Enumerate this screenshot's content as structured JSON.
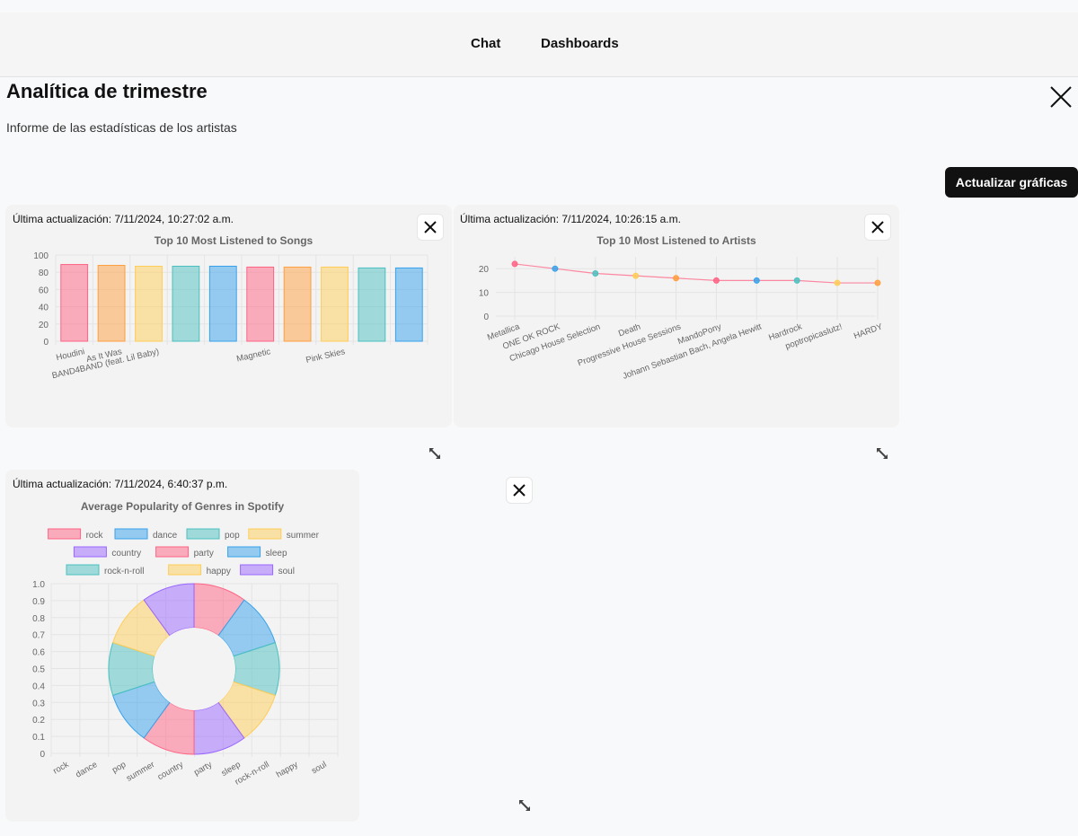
{
  "nav": {
    "chat_label": "Chat",
    "dashboards_label": "Dashboards"
  },
  "header": {
    "title": "Analítica de trimestre",
    "subtitle": "Informe de las estadísticas de los artistas"
  },
  "actions": {
    "refresh_label": "Actualizar gráficas"
  },
  "colors": {
    "pink": "#ff6384",
    "blue": "#36a2eb",
    "orange": "#ff9f40",
    "yellow": "#ffcd56",
    "teal": "#4bc0c0",
    "purple": "#9966ff"
  },
  "cards": [
    {
      "updated": "Última actualización: 7/11/2024, 10:27:02 a.m."
    },
    {
      "updated": "Última actualización: 7/11/2024, 10:26:15 a.m."
    },
    {
      "updated": "Última actualización: 7/11/2024, 6:40:37 p.m."
    }
  ],
  "chart_data": [
    {
      "type": "bar",
      "title": "Top 10 Most Listened to Songs",
      "categories": [
        "Houdini",
        "As It Was",
        "BAND4BAND (feat. Lil Baby)",
        "",
        "",
        "Magnetic",
        "",
        "Pink Skies",
        "",
        ""
      ],
      "values": [
        89,
        88,
        87,
        87,
        87,
        86,
        86,
        86,
        85,
        85
      ],
      "colors": [
        "pink",
        "orange",
        "yellow",
        "teal",
        "blue",
        "pink",
        "orange",
        "yellow",
        "teal",
        "blue"
      ],
      "ylim": [
        0,
        100
      ],
      "yticks": [
        0,
        20,
        40,
        60,
        80,
        100
      ],
      "grid": true
    },
    {
      "type": "line",
      "title": "Top 10 Most Listened to Artists",
      "categories": [
        "Metallica",
        "ONE OK ROCK",
        "Chicago House Selection",
        "Death",
        "Progressive House Sessions",
        "MandoPony",
        "Johann Sebastian Bach, Angela Hewitt",
        "Hardrock",
        "poptropicaslutz!",
        "HARDY"
      ],
      "values": [
        22,
        20,
        18,
        17,
        16,
        15,
        15,
        15,
        14,
        14
      ],
      "colors": [
        "pink",
        "blue",
        "teal",
        "yellow",
        "orange",
        "pink",
        "blue",
        "teal",
        "yellow",
        "orange"
      ],
      "ylim": [
        0,
        25
      ],
      "yticks": [
        0,
        10,
        20
      ],
      "grid": true
    },
    {
      "type": "pie",
      "title": "Average Popularity of Genres in Spotify",
      "categories": [
        "rock",
        "dance",
        "pop",
        "summer",
        "country",
        "party",
        "sleep",
        "rock-n-roll",
        "happy",
        "soul"
      ],
      "values": [
        1,
        1,
        1,
        1,
        1,
        1,
        1,
        1,
        1,
        1
      ],
      "segments": [
        {
          "genre": "rock",
          "value": 1,
          "color": "pink"
        },
        {
          "genre": "dance",
          "value": 1,
          "color": "blue"
        },
        {
          "genre": "rock-n-roll",
          "value": 1,
          "color": "teal"
        },
        {
          "genre": "happy",
          "value": 1,
          "color": "yellow"
        },
        {
          "genre": "soul",
          "value": 1,
          "color": "purple"
        },
        {
          "genre": "party",
          "value": 1,
          "color": "pink"
        },
        {
          "genre": "sleep",
          "value": 1,
          "color": "blue"
        },
        {
          "genre": "pop",
          "value": 1,
          "color": "teal"
        },
        {
          "genre": "summer",
          "value": 1,
          "color": "yellow"
        },
        {
          "genre": "country",
          "value": 1,
          "color": "purple"
        }
      ],
      "legend": [
        {
          "label": "rock",
          "color": "pink"
        },
        {
          "label": "dance",
          "color": "blue"
        },
        {
          "label": "pop",
          "color": "teal"
        },
        {
          "label": "summer",
          "color": "yellow"
        },
        {
          "label": "country",
          "color": "purple"
        },
        {
          "label": "party",
          "color": "pink"
        },
        {
          "label": "sleep",
          "color": "blue"
        },
        {
          "label": "rock-n-roll",
          "color": "teal"
        },
        {
          "label": "happy",
          "color": "yellow"
        },
        {
          "label": "soul",
          "color": "purple"
        }
      ],
      "legend_placement": "top",
      "ylim": [
        0,
        1.0
      ],
      "yticks": [
        "0",
        "0.1",
        "0.2",
        "0.3",
        "0.4",
        "0.5",
        "0.6",
        "0.7",
        "0.8",
        "0.9",
        "1.0"
      ],
      "grid": true
    }
  ]
}
